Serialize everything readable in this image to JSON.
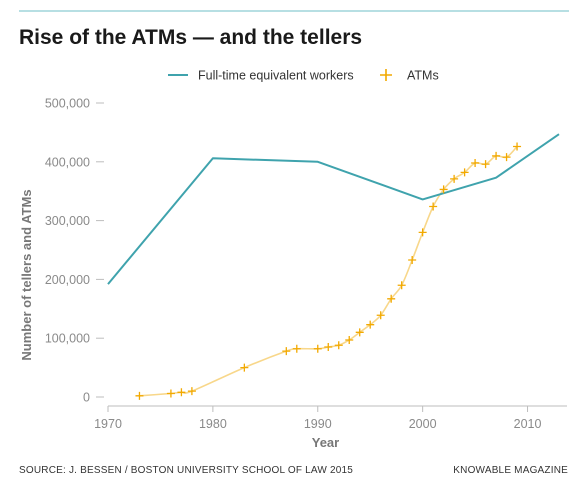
{
  "title": "Rise of the ATMs — and the tellers",
  "source": "SOURCE: J. BESSEN / BOSTON UNIVERSITY SCHOOL OF LAW 2015",
  "credit": "KNOWABLE MAGAZINE",
  "colors": {
    "workers": "#3fa3ad",
    "atms": "#f2a900",
    "atm_trend": "#f8d78a",
    "top_rule": "#b7dfe3"
  },
  "chart_data": {
    "type": "line",
    "title": "Rise of the ATMs — and the tellers",
    "xlabel": "Year",
    "ylabel": "Number of tellers and ATMs",
    "xlim": [
      1970,
      2013
    ],
    "ylim": [
      0,
      500000
    ],
    "x_ticks": [
      1970,
      1980,
      1990,
      2000,
      2010
    ],
    "y_ticks": [
      0,
      100000,
      200000,
      300000,
      400000,
      500000
    ],
    "y_tick_labels": [
      "0",
      "100,000",
      "200,000",
      "300,000",
      "400,000",
      "500,000"
    ],
    "legend_position": "top",
    "grid": false,
    "series": [
      {
        "name": "Full-time equivalent workers",
        "type": "line",
        "x": [
          1970,
          1980,
          1990,
          2000,
          2007,
          2013
        ],
        "y": [
          192000,
          406000,
          400000,
          336000,
          373000,
          447000
        ]
      },
      {
        "name": "ATMs",
        "type": "scatter",
        "x": [
          1973,
          1976,
          1977,
          1978,
          1983,
          1987,
          1988,
          1990,
          1991,
          1992,
          1993,
          1994,
          1995,
          1996,
          1997,
          1998,
          1999,
          2000,
          2001,
          2002,
          2003,
          2004,
          2005,
          2006,
          2007,
          2008,
          2009
        ],
        "y": [
          2000,
          6000,
          8000,
          10000,
          50000,
          78000,
          82000,
          82000,
          85000,
          88000,
          97000,
          110000,
          123000,
          139000,
          167000,
          190000,
          233000,
          280000,
          324000,
          353000,
          371000,
          382000,
          398000,
          396000,
          410000,
          408000,
          426000
        ]
      }
    ]
  }
}
